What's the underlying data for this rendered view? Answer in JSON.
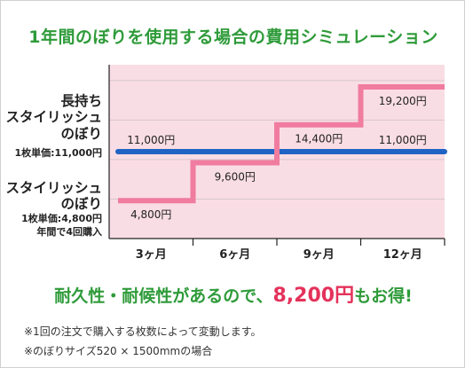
{
  "title": "1年間のぼりを使用する場合の費用シミュレーション",
  "labels": {
    "long_name_line1": "長持ち",
    "long_name_line2": "スタイリッシュ",
    "long_name_line3": "のぼり",
    "long_unit_price": "1枚単価:11,000円",
    "std_name_line1": "スタイリッシュ",
    "std_name_line2": "のぼり",
    "std_unit_price": "1枚単価:4,800円",
    "std_note": "年間で4回購入"
  },
  "slogan": {
    "prefix": "耐久性・耐候性があるので、",
    "amount": "8,200円",
    "suffix": "もお得!"
  },
  "notes": [
    "※1回の注文で購入する枚数によって変動します。",
    "※のぼりサイズ520 × 1500mmの場合"
  ],
  "colors": {
    "title_green": "#2f9b3a",
    "accent_pink": "#e4325b",
    "blue_line": "#1f63c4",
    "pink_line": "#f07c9f",
    "area_fill": "#f9dde5"
  },
  "chart_data": {
    "type": "line",
    "categories": [
      "3ヶ月",
      "6ヶ月",
      "9ヶ月",
      "12ヶ月"
    ],
    "ylim": [
      0,
      22000
    ],
    "grid": "horizontal",
    "series": [
      {
        "name": "長持ちスタイリッシュのぼり",
        "style": "flat",
        "values": [
          11000,
          11000,
          11000,
          11000
        ],
        "labels": [
          "11,000円",
          "",
          "",
          "11,000円"
        ]
      },
      {
        "name": "スタイリッシュのぼり",
        "style": "step",
        "values": [
          4800,
          9600,
          14400,
          19200
        ],
        "labels": [
          "4,800円",
          "9,600円",
          "14,400円",
          "19,200円"
        ]
      }
    ]
  }
}
